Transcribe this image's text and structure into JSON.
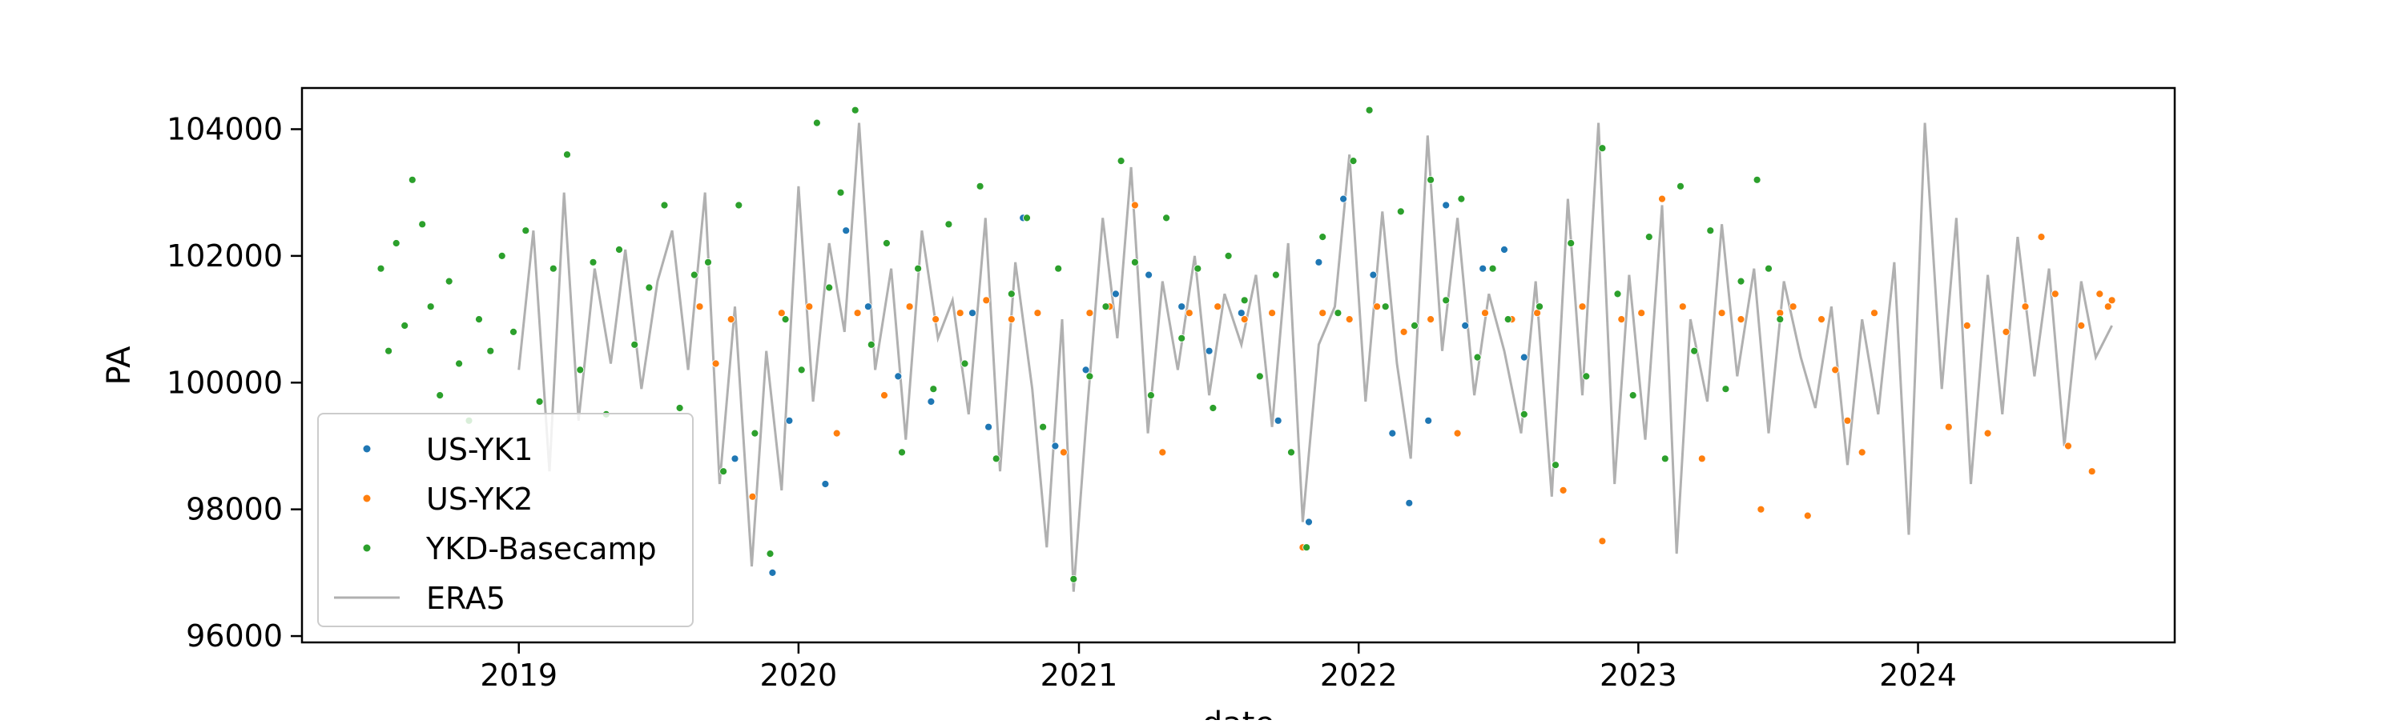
{
  "chart_data": {
    "type": "scatter",
    "title": "",
    "xlabel": "date",
    "ylabel": "PA",
    "xlim": [
      "2018-03-24",
      "2024-12-01"
    ],
    "ylim": [
      95900,
      104650
    ],
    "x_ticks": [
      "2019",
      "2020",
      "2021",
      "2022",
      "2023",
      "2024"
    ],
    "x_tick_dates": [
      "2019-01-01",
      "2020-01-01",
      "2021-01-01",
      "2022-01-01",
      "2023-01-01",
      "2024-01-01"
    ],
    "y_ticks": [
      96000,
      98000,
      100000,
      102000,
      104000
    ],
    "y_tick_labels": [
      "96000",
      "98000",
      "100000",
      "102000",
      "104000"
    ],
    "grid": false,
    "legend": {
      "position": "lower-left"
    },
    "series": [
      {
        "name": "US-YK1",
        "kind": "points",
        "color": "#1f77b4",
        "x": [
          "2019-10-10",
          "2019-11-28",
          "2019-12-20",
          "2020-02-05",
          "2020-03-03",
          "2020-04-01",
          "2020-05-10",
          "2020-06-22",
          "2020-08-15",
          "2020-09-05",
          "2020-10-20",
          "2020-12-01",
          "2021-01-10",
          "2021-02-18",
          "2021-04-02",
          "2021-05-15",
          "2021-06-20",
          "2021-08-01",
          "2021-09-18",
          "2021-10-28",
          "2021-11-10",
          "2021-12-12",
          "2022-01-20",
          "2022-02-14",
          "2022-03-08",
          "2022-04-02",
          "2022-04-25",
          "2022-05-20",
          "2022-06-12",
          "2022-07-10",
          "2022-08-05"
        ],
        "y": [
          98800,
          97000,
          99400,
          98400,
          102400,
          101200,
          100100,
          99700,
          101100,
          99300,
          102600,
          99000,
          100200,
          101400,
          101700,
          101200,
          100500,
          101100,
          99400,
          97800,
          101900,
          102900,
          101700,
          99200,
          98100,
          99400,
          102800,
          100900,
          101800,
          102100,
          100400
        ]
      },
      {
        "name": "US-YK2",
        "kind": "points",
        "color": "#ff7f0e",
        "x": [
          "2019-08-25",
          "2019-09-15",
          "2019-10-05",
          "2019-11-02",
          "2019-12-10",
          "2020-01-15",
          "2020-02-20",
          "2020-03-18",
          "2020-04-22",
          "2020-05-25",
          "2020-06-28",
          "2020-07-30",
          "2020-09-02",
          "2020-10-05",
          "2020-11-08",
          "2020-12-12",
          "2021-01-15",
          "2021-02-10",
          "2021-03-15",
          "2021-04-20",
          "2021-05-25",
          "2021-07-01",
          "2021-08-05",
          "2021-09-10",
          "2021-10-20",
          "2021-11-15",
          "2021-12-20",
          "2022-01-25",
          "2022-03-01",
          "2022-04-05",
          "2022-05-10",
          "2022-06-15",
          "2022-07-20",
          "2022-08-22",
          "2022-09-25",
          "2022-10-20",
          "2022-11-15",
          "2022-12-10",
          "2023-01-05",
          "2023-02-01",
          "2023-02-28",
          "2023-03-25",
          "2023-04-20",
          "2023-05-15",
          "2023-06-10",
          "2023-07-05",
          "2023-07-22",
          "2023-08-10",
          "2023-08-28",
          "2023-09-15",
          "2023-10-01",
          "2023-10-20",
          "2023-11-05",
          "2024-02-10",
          "2024-03-05",
          "2024-04-01",
          "2024-04-25",
          "2024-05-20",
          "2024-06-10",
          "2024-06-28",
          "2024-07-15",
          "2024-08-01",
          "2024-08-15",
          "2024-08-25",
          "2024-09-05",
          "2024-09-10"
        ],
        "y": [
          101200,
          100300,
          101000,
          98200,
          101100,
          101200,
          99200,
          101100,
          99800,
          101200,
          101000,
          101100,
          101300,
          101000,
          101100,
          98900,
          101100,
          101200,
          102800,
          98900,
          101100,
          101200,
          101000,
          101100,
          97400,
          101100,
          101000,
          101200,
          100800,
          101000,
          99200,
          101100,
          101000,
          101100,
          98300,
          101200,
          97500,
          101000,
          101100,
          102900,
          101200,
          98800,
          101100,
          101000,
          98000,
          101100,
          101200,
          97900,
          101000,
          100200,
          99400,
          98900,
          101100,
          99300,
          100900,
          99200,
          100800,
          101200,
          102300,
          101400,
          99000,
          100900,
          98600,
          101400,
          101200,
          101300
        ]
      },
      {
        "name": "YKD-Basecamp",
        "kind": "points",
        "color": "#2ca02c",
        "x": [
          "2018-07-05",
          "2018-07-15",
          "2018-07-25",
          "2018-08-05",
          "2018-08-15",
          "2018-08-28",
          "2018-09-08",
          "2018-09-20",
          "2018-10-02",
          "2018-10-15",
          "2018-10-28",
          "2018-11-10",
          "2018-11-25",
          "2018-12-10",
          "2018-12-25",
          "2019-01-10",
          "2019-01-28",
          "2019-02-15",
          "2019-03-05",
          "2019-03-22",
          "2019-04-08",
          "2019-04-25",
          "2019-05-12",
          "2019-06-01",
          "2019-06-20",
          "2019-07-10",
          "2019-07-30",
          "2019-08-18",
          "2019-09-05",
          "2019-09-25",
          "2019-10-15",
          "2019-11-05",
          "2019-11-25",
          "2019-12-15",
          "2020-01-05",
          "2020-01-25",
          "2020-02-10",
          "2020-02-25",
          "2020-03-15",
          "2020-04-05",
          "2020-04-25",
          "2020-05-15",
          "2020-06-05",
          "2020-06-25",
          "2020-07-15",
          "2020-08-05",
          "2020-08-25",
          "2020-09-15",
          "2020-10-05",
          "2020-10-25",
          "2020-11-15",
          "2020-12-05",
          "2020-12-25",
          "2021-01-15",
          "2021-02-05",
          "2021-02-25",
          "2021-03-15",
          "2021-04-05",
          "2021-04-25",
          "2021-05-15",
          "2021-06-05",
          "2021-06-25",
          "2021-07-15",
          "2021-08-05",
          "2021-08-25",
          "2021-09-15",
          "2021-10-05",
          "2021-10-25",
          "2021-11-15",
          "2021-12-05",
          "2021-12-25",
          "2022-01-15",
          "2022-02-05",
          "2022-02-25",
          "2022-03-15",
          "2022-04-05",
          "2022-04-25",
          "2022-05-15",
          "2022-06-05",
          "2022-06-25",
          "2022-07-15",
          "2022-08-05",
          "2022-08-25",
          "2022-09-15",
          "2022-10-05",
          "2022-10-25",
          "2022-11-15",
          "2022-12-05",
          "2022-12-25",
          "2023-01-15",
          "2023-02-05",
          "2023-02-25",
          "2023-03-15",
          "2023-04-05",
          "2023-04-25",
          "2023-05-15",
          "2023-06-05",
          "2023-06-20",
          "2023-07-05"
        ],
        "y": [
          101800,
          100500,
          102200,
          100900,
          103200,
          102500,
          101200,
          99800,
          101600,
          100300,
          99400,
          101000,
          100500,
          102000,
          100800,
          102400,
          99700,
          101800,
          103600,
          100200,
          101900,
          99500,
          102100,
          100600,
          101500,
          102800,
          99600,
          101700,
          101900,
          98600,
          102800,
          99200,
          97300,
          101000,
          100200,
          104100,
          101500,
          103000,
          104300,
          100600,
          102200,
          98900,
          101800,
          99900,
          102500,
          100300,
          103100,
          98800,
          101400,
          102600,
          99300,
          101800,
          96900,
          100100,
          101200,
          103500,
          101900,
          99800,
          102600,
          100700,
          101800,
          99600,
          102000,
          101300,
          100100,
          101700,
          98900,
          97400,
          102300,
          101100,
          103500,
          104300,
          101200,
          102700,
          100900,
          103200,
          101300,
          102900,
          100400,
          101800,
          101000,
          99500,
          101200,
          98700,
          102200,
          100100,
          103700,
          101400,
          99800,
          102300,
          98800,
          103100,
          100500,
          102400,
          99900,
          101600,
          103200,
          101800,
          101000
        ]
      },
      {
        "name": "ERA5",
        "kind": "line",
        "color": "#b0b0b0",
        "x": [
          "2019-01-01",
          "2019-01-20",
          "2019-02-10",
          "2019-03-01",
          "2019-03-20",
          "2019-04-10",
          "2019-05-01",
          "2019-05-20",
          "2019-06-10",
          "2019-07-01",
          "2019-07-20",
          "2019-08-10",
          "2019-09-01",
          "2019-09-20",
          "2019-10-10",
          "2019-11-01",
          "2019-11-20",
          "2019-12-10",
          "2020-01-01",
          "2020-01-20",
          "2020-02-10",
          "2020-03-01",
          "2020-03-20",
          "2020-04-10",
          "2020-05-01",
          "2020-05-20",
          "2020-06-10",
          "2020-07-01",
          "2020-07-20",
          "2020-08-10",
          "2020-09-01",
          "2020-09-20",
          "2020-10-10",
          "2020-11-01",
          "2020-11-20",
          "2020-12-10",
          "2020-12-25",
          "2021-01-10",
          "2021-02-01",
          "2021-02-20",
          "2021-03-10",
          "2021-04-01",
          "2021-04-20",
          "2021-05-10",
          "2021-06-01",
          "2021-06-20",
          "2021-07-10",
          "2021-08-01",
          "2021-08-20",
          "2021-09-10",
          "2021-10-01",
          "2021-10-20",
          "2021-11-10",
          "2021-12-01",
          "2021-12-20",
          "2022-01-10",
          "2022-02-01",
          "2022-02-20",
          "2022-03-10",
          "2022-04-01",
          "2022-04-20",
          "2022-05-10",
          "2022-06-01",
          "2022-06-20",
          "2022-07-10",
          "2022-08-01",
          "2022-08-20",
          "2022-09-10",
          "2022-10-01",
          "2022-10-20",
          "2022-11-10",
          "2022-12-01",
          "2022-12-20",
          "2023-01-10",
          "2023-02-01",
          "2023-02-20",
          "2023-03-10",
          "2023-04-01",
          "2023-04-20",
          "2023-05-10",
          "2023-06-01",
          "2023-06-20",
          "2023-07-10",
          "2023-08-01",
          "2023-08-20",
          "2023-09-10",
          "2023-10-01",
          "2023-10-20",
          "2023-11-10",
          "2023-12-01",
          "2023-12-20",
          "2024-01-10",
          "2024-02-01",
          "2024-02-20",
          "2024-03-10",
          "2024-04-01",
          "2024-04-20",
          "2024-05-10",
          "2024-06-01",
          "2024-06-20",
          "2024-07-10",
          "2024-08-01",
          "2024-08-20",
          "2024-09-10"
        ],
        "y": [
          100200,
          102400,
          98600,
          103000,
          99400,
          101800,
          100300,
          102100,
          99900,
          101600,
          102400,
          100200,
          103000,
          98400,
          101200,
          97100,
          100500,
          98300,
          103100,
          99700,
          102200,
          100800,
          104100,
          100200,
          101800,
          99100,
          102400,
          100700,
          101300,
          99500,
          102600,
          98600,
          101900,
          99900,
          97400,
          101000,
          96700,
          99300,
          102600,
          100700,
          103400,
          99200,
          101600,
          100200,
          102000,
          99800,
          101400,
          100600,
          101700,
          99300,
          102200,
          97800,
          100600,
          101200,
          103600,
          99700,
          102700,
          100300,
          98800,
          103900,
          100500,
          102600,
          99800,
          101400,
          100500,
          99200,
          101600,
          98200,
          102900,
          99800,
          104100,
          98400,
          101700,
          99100,
          102800,
          97300,
          101000,
          99700,
          102500,
          100100,
          101800,
          99200,
          101600,
          100400,
          99600,
          101200,
          98700,
          101000,
          99500,
          101900,
          97600,
          104100,
          99900,
          102600,
          98400,
          101700,
          99500,
          102300,
          100100,
          101800,
          99000,
          101600,
          100400,
          100900
        ]
      }
    ]
  }
}
